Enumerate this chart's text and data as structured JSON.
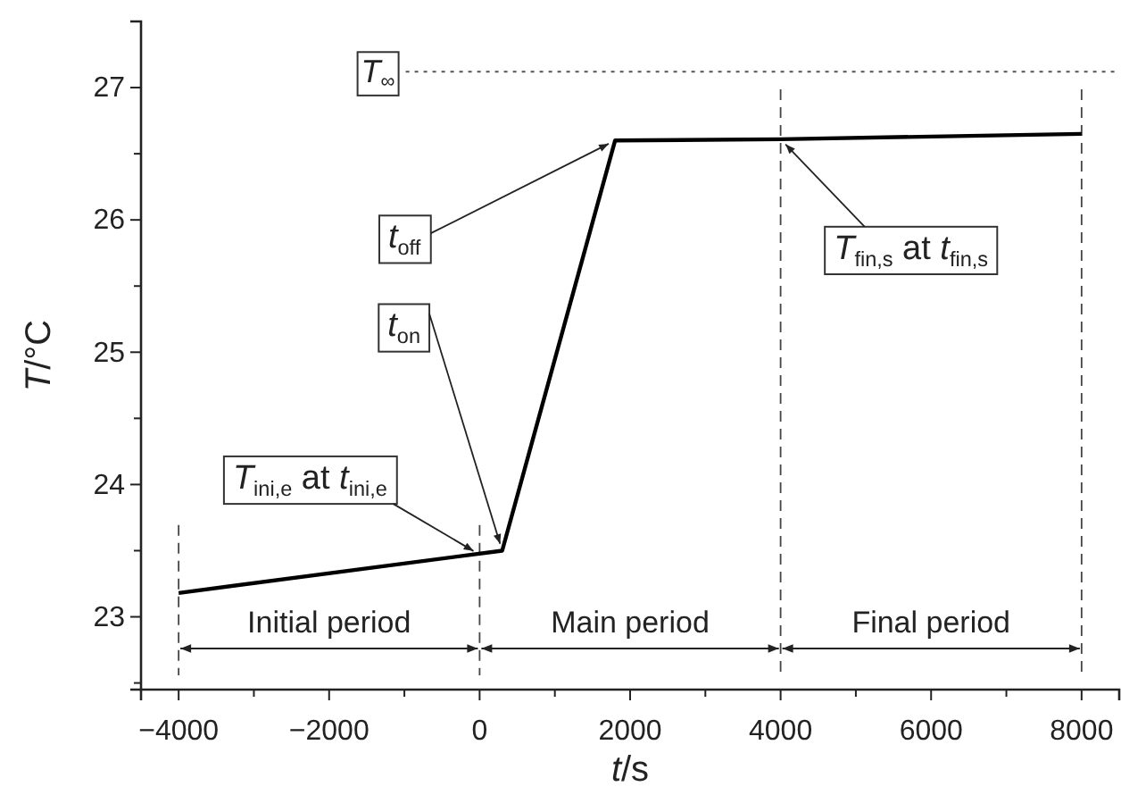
{
  "chart_data": {
    "type": "line",
    "xlabel": "t/s",
    "ylabel": "T/°C",
    "x": [
      -4000,
      300,
      1800,
      4000,
      8000
    ],
    "series": [
      {
        "color": "#000000",
        "values": [
          23.18,
          23.5,
          26.6,
          26.61,
          26.65
        ]
      }
    ],
    "xlim": [
      -4500,
      8500
    ],
    "ylim": [
      22.45,
      27.5
    ],
    "xticks": [
      -4000,
      {
        "value": -3000,
        "label": null
      },
      -2000,
      {
        "value": -1000,
        "label": null
      },
      0,
      {
        "value": 1000,
        "label": null
      },
      2000,
      {
        "value": 3000,
        "label": null
      },
      4000,
      {
        "value": 5000,
        "label": null
      },
      6000,
      {
        "value": 7000,
        "label": null
      },
      8000
    ],
    "yticks": [
      {
        "value": 22.5,
        "label": null
      },
      23,
      {
        "value": 23.5,
        "label": null
      },
      24,
      {
        "value": 24.5,
        "label": null
      },
      25,
      {
        "value": 25.5,
        "label": null
      },
      26,
      {
        "value": 26.5,
        "label": null
      },
      27,
      {
        "value": 27.5,
        "label": null
      }
    ],
    "ref_lines": [
      {
        "axis": "y",
        "value": 27.12,
        "label": "T$_{∞}$",
        "line_style": "dotted"
      },
      {
        "axis": "x",
        "value": -4000,
        "line_style": "dashed"
      },
      {
        "axis": "x",
        "value": 0,
        "line_style": "dashed"
      },
      {
        "axis": "x",
        "value": 4000,
        "line_style": "dashed"
      },
      {
        "axis": "x",
        "value": 8000,
        "line_style": "dashed"
      }
    ],
    "annotations": [
      "Initial period",
      "Main period",
      "Final period",
      {
        "text": "T$_{ini,e}$ at t$_{ini,e}$",
        "x": 0,
        "y": 23.47
      },
      {
        "text": "t$_{on}$",
        "x": 300,
        "y": 23.5
      },
      {
        "text": "t$_{off}$",
        "x": 1800,
        "y": 26.6
      },
      {
        "text": "T$_{fin,s}$ at t$_{fin,s}$",
        "x": 4000,
        "y": 26.61
      }
    ],
    "grid": false,
    "marker": "none",
    "line_style": "solid"
  }
}
